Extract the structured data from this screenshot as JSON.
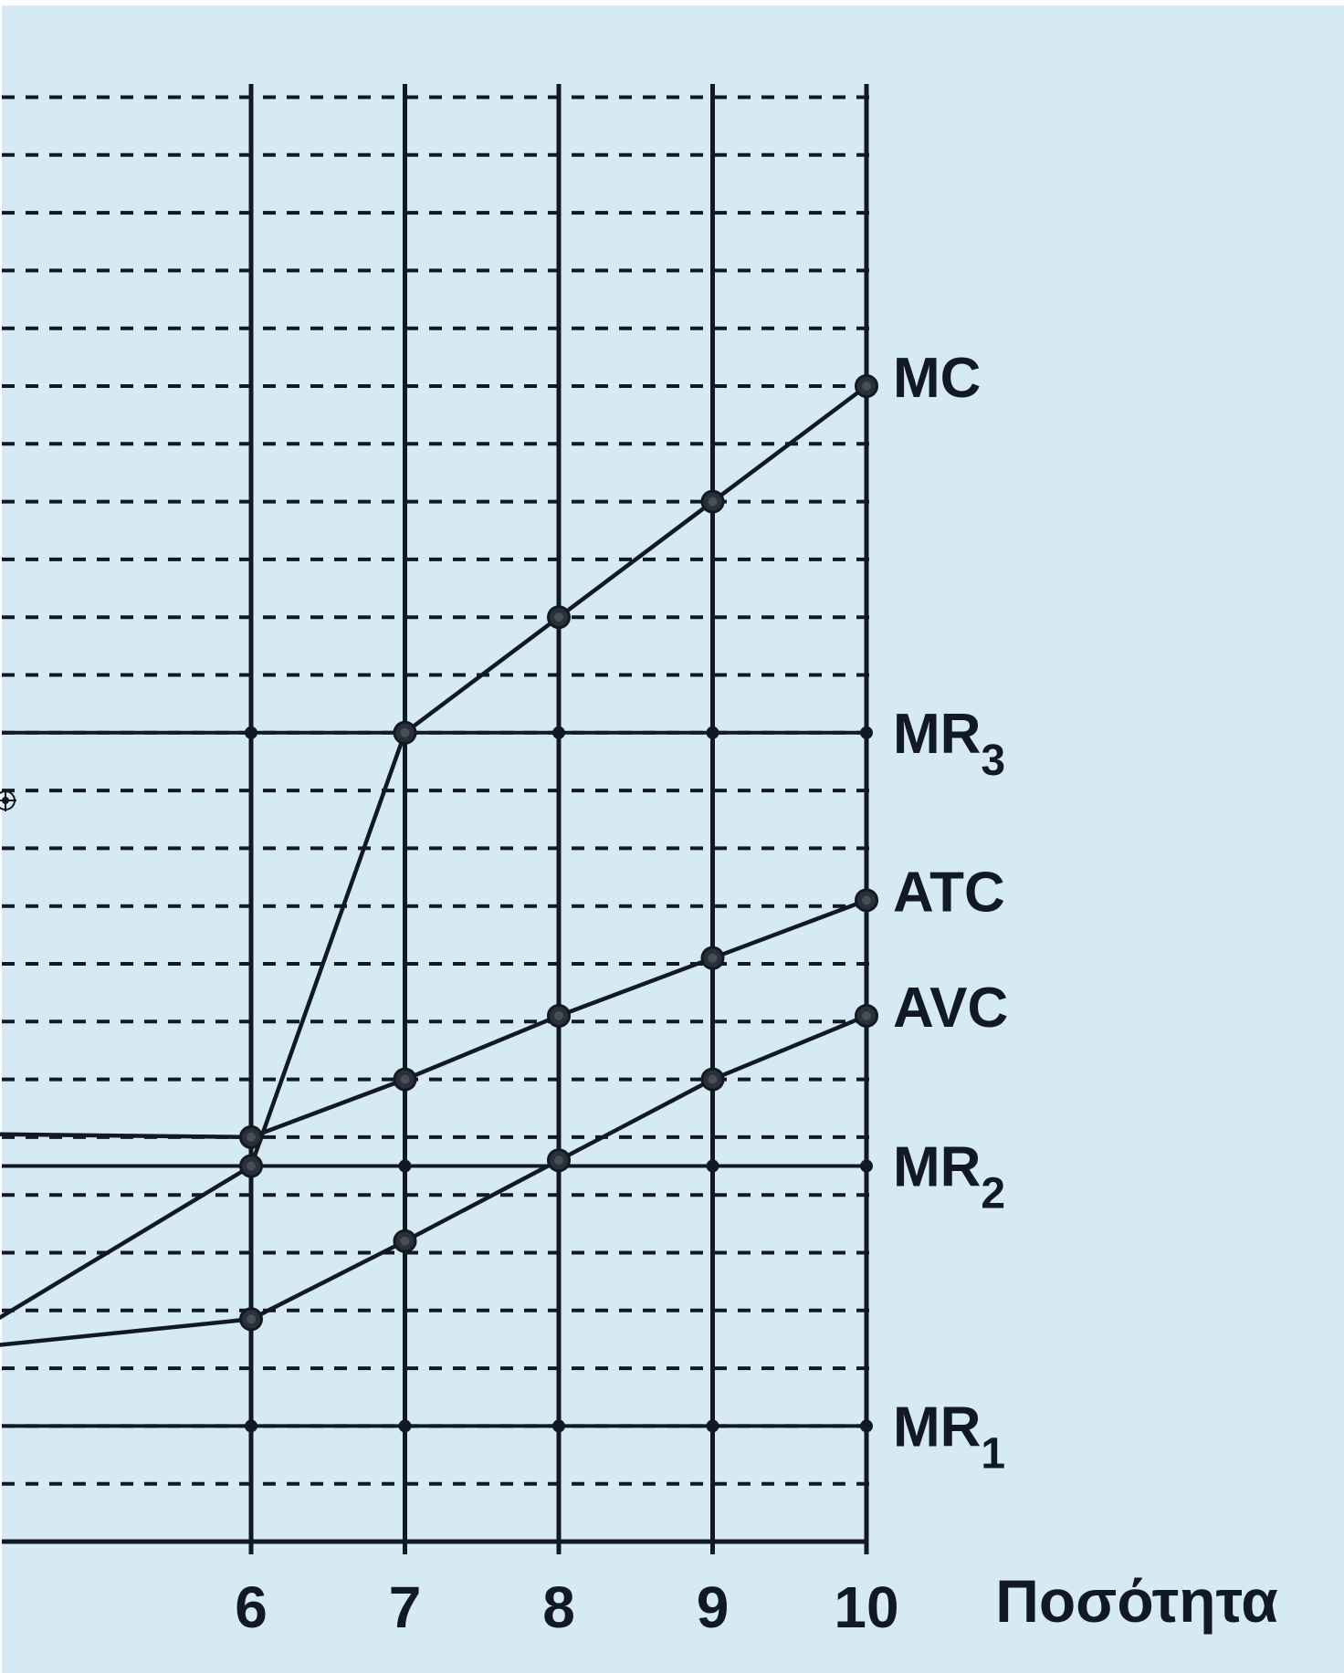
{
  "chart_data": {
    "type": "line",
    "background_color": "#d6eaf6",
    "line_color": "#111a22",
    "x_visible_range": [
      4.35,
      10.0
    ],
    "y_range_gridlines": [
      0,
      25
    ],
    "x_ticks": [
      "6",
      "7",
      "8",
      "9",
      "10"
    ],
    "x_tick_values": [
      6,
      7,
      8,
      9,
      10
    ],
    "xlabel": "Ποσότητα",
    "ylabel": "",
    "grid": "dashed horizontal lines, solid vertical lines at x ticks",
    "series": [
      {
        "name": "MC",
        "name_main": "MC",
        "name_sub": "",
        "x": [
          4.35,
          6,
          7,
          8,
          9,
          10
        ],
        "y": [
          3.85,
          6.5,
          14,
          16,
          18,
          20
        ],
        "marked_points_from_index": 1
      },
      {
        "name": "ATC",
        "name_main": "ATC",
        "name_sub": "",
        "x": [
          4.35,
          6,
          7,
          8,
          9,
          10
        ],
        "y": [
          7.05,
          7.0,
          8.0,
          9.1,
          10.1,
          11.1
        ],
        "marked_points_from_index": 1
      },
      {
        "name": "AVC",
        "name_main": "AVC",
        "name_sub": "",
        "x": [
          4.35,
          6,
          7,
          8,
          9,
          10
        ],
        "y": [
          3.4,
          3.85,
          5.2,
          6.6,
          8.0,
          9.1
        ],
        "marked_points_from_index": 1
      }
    ],
    "revenue_lines": [
      {
        "name": "MR3",
        "name_main": "MR",
        "name_sub": "3",
        "y": 14
      },
      {
        "name": "MR2",
        "name_main": "MR",
        "name_sub": "2",
        "y": 6.5
      },
      {
        "name": "MR1",
        "name_main": "MR",
        "name_sub": "1",
        "y": 2
      }
    ],
    "legend_placement": "labels at right end of each curve"
  }
}
